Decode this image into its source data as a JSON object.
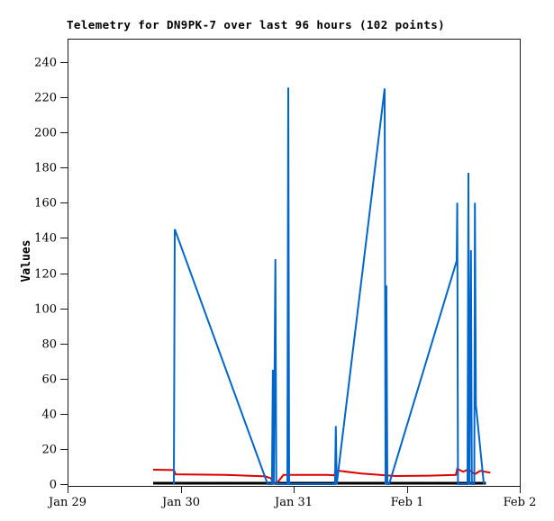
{
  "window": {
    "background": "#ffffff"
  },
  "chart_data": {
    "type": "line",
    "title": "Telemetry for DN9PK-7 over last 96 hours (102 points)",
    "ylabel": "Values",
    "xlabel": "",
    "x_unit": "days since Jan 29 tick",
    "xlim": [
      0,
      4
    ],
    "ylim": [
      0,
      253
    ],
    "grid": false,
    "legend": "none",
    "frame_color": "#1a1a1a",
    "x_ticks": [
      {
        "pos": 0,
        "label": "Jan 29"
      },
      {
        "pos": 1,
        "label": "Jan 30"
      },
      {
        "pos": 2,
        "label": "Jan 31"
      },
      {
        "pos": 3,
        "label": "Feb 1"
      },
      {
        "pos": 4,
        "label": "Feb 2"
      }
    ],
    "y_ticks": [
      0,
      20,
      40,
      60,
      80,
      100,
      120,
      140,
      160,
      180,
      200,
      220,
      240
    ],
    "series": [
      {
        "name": "black",
        "color": "#000000",
        "width": 3,
        "points": [
          [
            0.757,
            0.5
          ],
          [
            3.7,
            0.5
          ]
        ]
      },
      {
        "name": "red",
        "color": "#dd0000",
        "width": 2,
        "points": [
          [
            0.757,
            8.2
          ],
          [
            0.94,
            8.0
          ],
          [
            0.956,
            5.6
          ],
          [
            1.4,
            5.2
          ],
          [
            1.75,
            4.4
          ],
          [
            1.8,
            3.3
          ],
          [
            1.814,
            0.5
          ],
          [
            1.852,
            0.5
          ],
          [
            1.91,
            5.2
          ],
          [
            2.3,
            5.2
          ],
          [
            2.36,
            5.0
          ],
          [
            2.373,
            7.8
          ],
          [
            2.6,
            6.0
          ],
          [
            2.9,
            4.6
          ],
          [
            3.2,
            4.8
          ],
          [
            3.38,
            5.1
          ],
          [
            3.435,
            5.2
          ],
          [
            3.447,
            8.7
          ],
          [
            3.5,
            7.0
          ],
          [
            3.546,
            8.5
          ],
          [
            3.6,
            5.6
          ],
          [
            3.65,
            7.5
          ],
          [
            3.74,
            6.5
          ]
        ]
      },
      {
        "name": "blue",
        "color": "#0066cc",
        "width": 2,
        "points": [
          [
            0.94,
            0
          ],
          [
            0.948,
            145
          ],
          [
            1.77,
            0
          ],
          [
            1.808,
            0
          ],
          [
            1.816,
            65
          ],
          [
            1.824,
            0
          ],
          [
            1.838,
            128
          ],
          [
            1.846,
            0
          ],
          [
            1.944,
            0
          ],
          [
            1.952,
            225.5
          ],
          [
            1.96,
            0
          ],
          [
            2.366,
            0
          ],
          [
            2.373,
            33
          ],
          [
            2.381,
            0
          ],
          [
            2.805,
            225
          ],
          [
            2.813,
            0
          ],
          [
            2.82,
            113
          ],
          [
            2.829,
            0
          ],
          [
            2.845,
            0
          ],
          [
            3.442,
            127
          ],
          [
            3.447,
            160
          ],
          [
            3.453,
            0
          ],
          [
            3.538,
            0
          ],
          [
            3.546,
            177
          ],
          [
            3.554,
            0
          ],
          [
            3.568,
            133
          ],
          [
            3.576,
            0
          ],
          [
            3.598,
            0
          ],
          [
            3.603,
            160
          ],
          [
            3.612,
            45
          ],
          [
            3.682,
            0
          ]
        ]
      }
    ]
  }
}
